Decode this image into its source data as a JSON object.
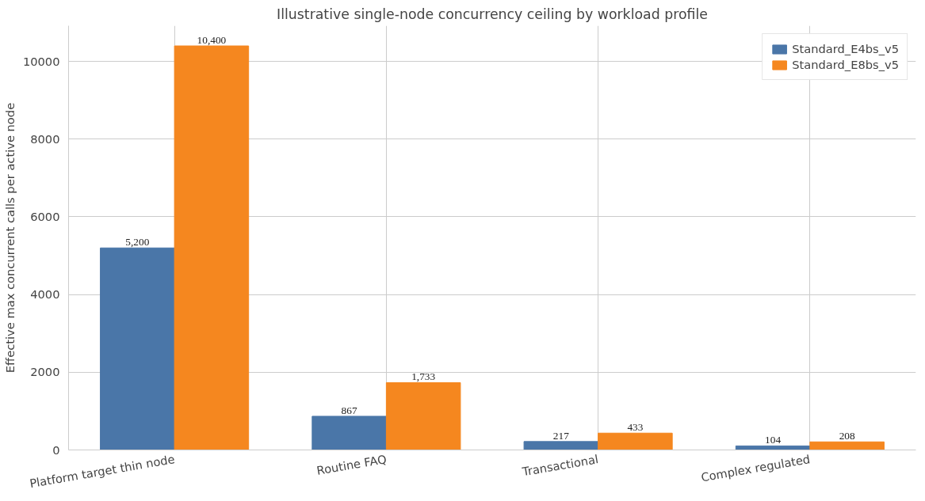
{
  "chart_data": {
    "type": "bar",
    "title": "Illustrative single-node concurrency ceiling by workload profile",
    "ylabel": "Effective max concurrent calls per active node",
    "categories": [
      "Platform target thin node",
      "Routine FAQ",
      "Transactional",
      "Complex regulated"
    ],
    "series": [
      {
        "name": "Standard_E4bs_v5",
        "color": "#4a76a8",
        "values": [
          5200,
          867,
          217,
          104
        ],
        "value_labels": [
          "5,200",
          "867",
          "217",
          "104"
        ]
      },
      {
        "name": "Standard_E8bs_v5",
        "color": "#f5871f",
        "values": [
          10400,
          1733,
          433,
          208
        ],
        "value_labels": [
          "10,400",
          "1,733",
          "433",
          "208"
        ]
      }
    ],
    "ylim": [
      0,
      10920
    ],
    "yticks": [
      0,
      2000,
      4000,
      6000,
      8000,
      10000
    ],
    "grid": true,
    "legend": "top right"
  }
}
